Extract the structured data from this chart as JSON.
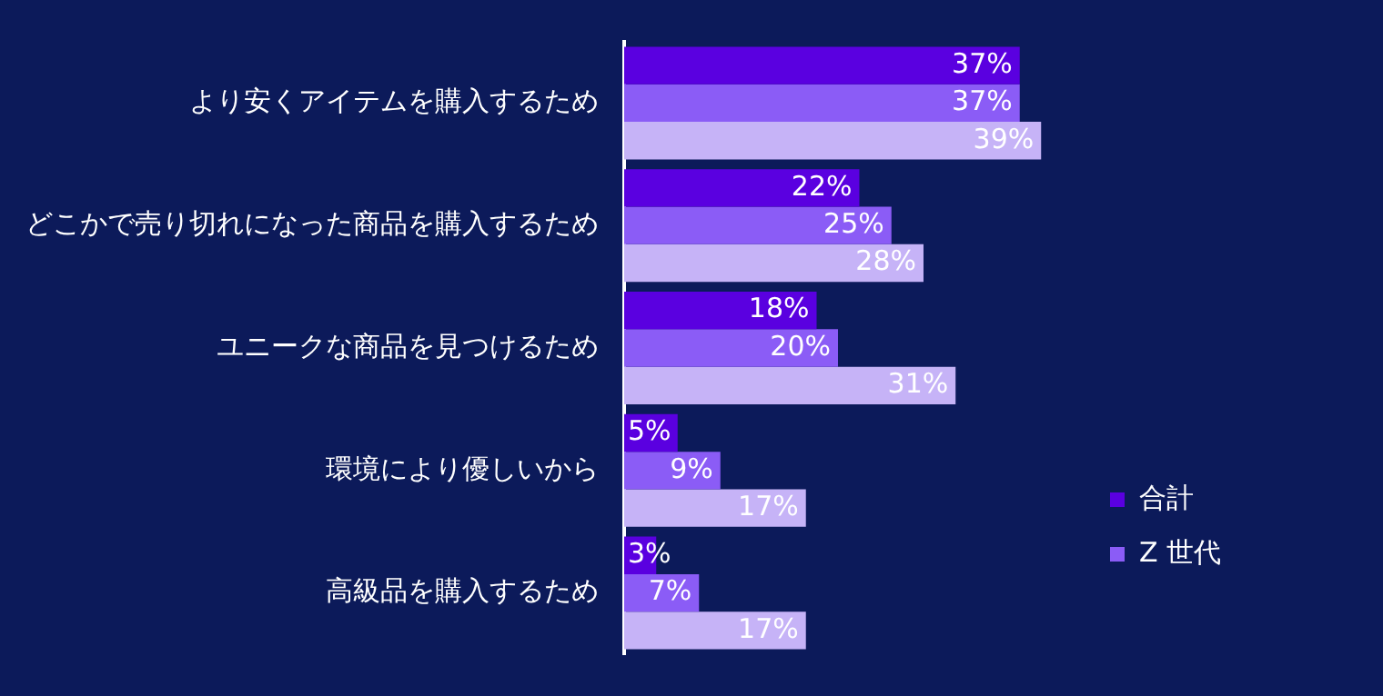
{
  "chart_data": {
    "type": "bar",
    "orientation": "horizontal",
    "categories": [
      "より安くアイテムを購入するため",
      "どこかで売り切れになった商品を購入するため",
      "ユニークな商品を見つけるため",
      "環境により優しいから",
      "高級品を購入するため"
    ],
    "series": [
      {
        "name": "合計",
        "color": "#5a00e0",
        "values": [
          37,
          22,
          18,
          5,
          3
        ],
        "value_labels": [
          "37%",
          "22%",
          "18%",
          "5%",
          "3%"
        ]
      },
      {
        "name": "Z 世代",
        "color": "#8b5cf6",
        "values": [
          37,
          25,
          20,
          9,
          7
        ],
        "value_labels": [
          "37%",
          "25%",
          "20%",
          "9%",
          "7%"
        ]
      },
      {
        "color": "#c6b3f7",
        "values": [
          39,
          28,
          31,
          17,
          17
        ],
        "value_labels": [
          "39%",
          "28%",
          "31%",
          "17%",
          "17%"
        ]
      }
    ],
    "legend": "bottom right"
  }
}
